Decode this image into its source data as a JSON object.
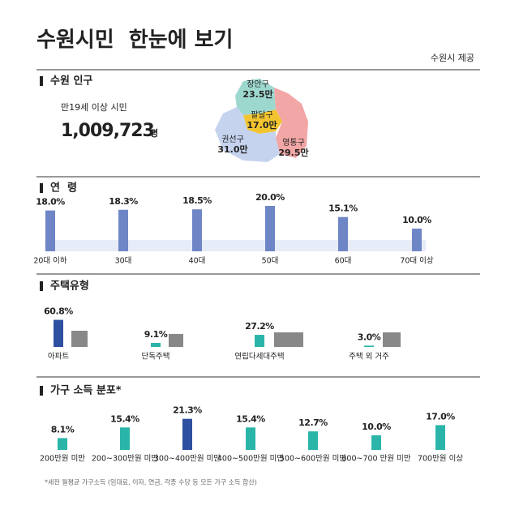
{
  "header": {
    "title": "수원시민  한눈에 보기",
    "source": "수원시 제공"
  },
  "population": {
    "heading": "수원 인구",
    "label": "만19세 이상 시민",
    "total": "1,009,723",
    "unit": "명",
    "districts": [
      {
        "name": "장안구",
        "value": "23.5만"
      },
      {
        "name": "팔달구",
        "value": "17.0만"
      },
      {
        "name": "권선구",
        "value": "31.0만"
      },
      {
        "name": "영통구",
        "value": "29.5만"
      }
    ]
  },
  "age": {
    "heading": "연  령",
    "color": "#6f86c6",
    "categories": [
      "20대 이하",
      "30대",
      "40대",
      "50대",
      "60대",
      "70대 이상"
    ],
    "values": [
      18.0,
      18.3,
      18.5,
      20.0,
      15.1,
      10.0
    ],
    "value_labels": [
      "18.0%",
      "18.3%",
      "18.5%",
      "20.0%",
      "15.1%",
      "10.0%"
    ]
  },
  "housing": {
    "heading": "주택유형",
    "colors": [
      "#2f50a0",
      "#2bb5a8",
      "#2bb5a8",
      "#2bb5a8"
    ],
    "categories": [
      "아파트",
      "단독주택",
      "연립다세대주택",
      "주택 외 거주"
    ],
    "values": [
      60.8,
      9.1,
      27.2,
      3.0
    ],
    "value_labels": [
      "60.8%",
      "9.1%",
      "27.2%",
      "3.0%"
    ]
  },
  "income": {
    "heading": "가구 소득 분포*",
    "colors": [
      "#2bb5a8",
      "#2bb5a8",
      "#2f50a0",
      "#2bb5a8",
      "#2bb5a8",
      "#2bb5a8",
      "#2bb5a8"
    ],
    "categories": [
      "200만원 미만",
      "200~300만원 미만",
      "300~400만원 미만",
      "400~500만원 미만",
      "500~600만원 미만",
      "600~700 만원 미만",
      "700만원 이상"
    ],
    "values": [
      8.1,
      15.4,
      21.3,
      15.4,
      12.7,
      10.0,
      17.0
    ],
    "value_labels": [
      "8.1%",
      "15.4%",
      "21.3%",
      "15.4%",
      "12.7%",
      "10.0%",
      "17.0%"
    ]
  },
  "footnote": "*세전 월평균 가구소득 (임대료, 이자, 연금, 각종 수당 등 모든 가구 소득 합산)"
}
